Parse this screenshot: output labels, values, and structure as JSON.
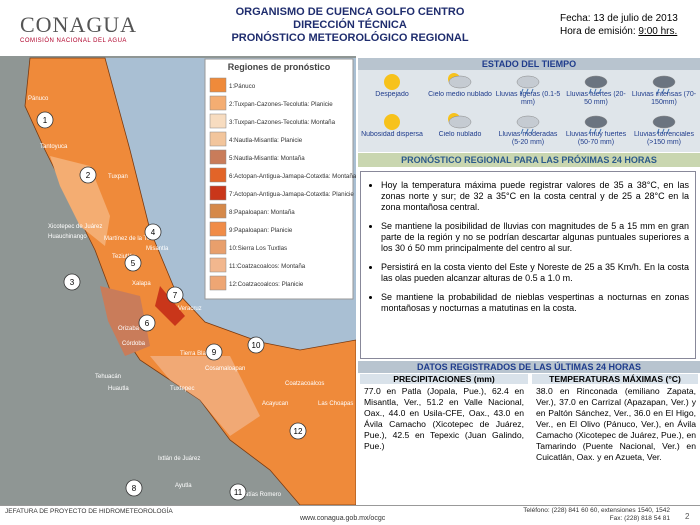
{
  "header": {
    "logo": "CONAGUA",
    "logo_subtitle": "COMISIÓN NACIONAL DEL AGUA",
    "title_lines": [
      "ORGANISMO DE CUENCA GOLFO CENTRO",
      "DIRECCIÓN TÉCNICA",
      "PRONÓSTICO METEOROLÓGICO REGIONAL"
    ],
    "date": "Fecha: 13 de julio de 2013",
    "issue_label": "Hora de emisión:",
    "issue_time": "9:00 hrs."
  },
  "legend": {
    "title": "Regiones de pronóstico",
    "items": [
      {
        "label": "1:Pánuco",
        "color": "#ef8a3a"
      },
      {
        "label": "2:Tuxpan-Cazones-Tecolutla: Planicie",
        "color": "#f4ad72"
      },
      {
        "label": "3:Tuxpan-Cazones-Tecolutla: Montaña",
        "color": "#f7dcc0"
      },
      {
        "label": "4:Nautla-Misantla: Planicie",
        "color": "#f2c59c"
      },
      {
        "label": "5:Nautla-Misantla: Montaña",
        "color": "#c97c5a"
      },
      {
        "label": "6:Actopan-Antigua-Jamapa-Cotaxtla: Montaña",
        "color": "#e26428"
      },
      {
        "label": "7:Actopan-Antigua-Jamapa-Cotaxtla: Planicie",
        "color": "#c9361a"
      },
      {
        "label": "8:Papaloapan: Montaña",
        "color": "#d5894a"
      },
      {
        "label": "9:Papaloapan: Planicie",
        "color": "#f08c48"
      },
      {
        "label": "10:Sierra Los Tuxtlas",
        "color": "#e89f6c"
      },
      {
        "label": "11:Coatzacoalcos: Montaña",
        "color": "#f2b78e"
      },
      {
        "label": "12:Coatzacoalcos: Planicie",
        "color": "#eea674"
      }
    ]
  },
  "map": {
    "regions": [
      1,
      2,
      3,
      4,
      5,
      6,
      7,
      8,
      9,
      10,
      11,
      12
    ],
    "labels": [
      "Pánuco",
      "Tantoyuca",
      "Tuxpan",
      "Xicotepec de Juárez",
      "Huauchinango",
      "Martínez de la Torre",
      "Misantla",
      "Teziutlán",
      "Xalapa",
      "Veracruz",
      "Orizaba",
      "Córdoba",
      "Tierra Blanca",
      "Cosamaloapan",
      "Tuxtepec",
      "Tehuacán",
      "Huautla",
      "Ixtlán de Juárez",
      "Ayutla",
      "Acayucan",
      "Coatzacoalcos",
      "Las Choapas",
      "Matías Romero"
    ]
  },
  "weather": {
    "title": "ESTADO DEL TIEMPO",
    "items": [
      "Despejado",
      "Cielo medio nublado",
      "Lluvias ligeras (0.1-5 mm)",
      "Lluvias fuertes (20-50 mm)",
      "Lluvias intensas (70-150mm)",
      "Nubosidad dispersa",
      "Cielo nublado",
      "Lluvias moderadas (5-20 mm)",
      "Lluvias muy fuertes (50-70 mm)",
      "Lluvias torrenciales (>150 mm)"
    ]
  },
  "forecast": {
    "title": "PRONÓSTICO REGIONAL PARA LAS PRÓXIMAS 24 HORAS",
    "bullets": [
      "Hoy la temperatura máxima puede registrar valores de 35 a 38°C, en las zonas norte y sur; de 32 a 35°C en la costa central y de 25 a 28°C en la zona montañosa central.",
      "Se mantiene la posibilidad de lluvias con magnitudes de 5 a 15 mm en gran parte de la región y no se podrían descartar algunas puntuales superiores a los 30 ó 50 mm principalmente del centro al sur.",
      "Persistirá en la costa viento del Este y Noreste de 25 a 35 Km/h. En la costa las olas pueden alcanzar alturas de 0.5 a 1.0 m.",
      "Se mantiene la probabilidad de nieblas vespertinas a nocturnas en zonas montañosas y nocturnas a matutinas en la costa."
    ]
  },
  "records": {
    "title": "DATOS REGISTRADOS DE LAS ÚLTIMAS 24 HORAS",
    "columns": [
      {
        "heading": "PRECIPITACIONES (mm)",
        "text": "77.0 en Patla (Jopala, Pue.), 62.4 en Misantla, Ver., 51.2 en Valle Nacional, Oax., 44.0 en Usila-CFE, Oax., 43.0 en Ávila Camacho (Xicotepec de Juárez, Pue.), 42.5 en Tepexic (Juan Galindo, Pue.)"
      },
      {
        "heading": "TEMPERATURAS MÁXIMAS (°C)",
        "text": "38.0 en Rinconada (emiliano Zapata, Ver.), 37.0 en Carrizal (Apazapan, Ver.) y en Paltón Sánchez, Ver., 36.0 en El Higo, Ver., en El Olivo (Pánuco, Ver.), en Ávila Camacho (Xicotepec de Juárez, Pue.), en Tamarindo (Puente Nacional, Ver.) en Cuicatlán, Oax. y en Azueta, Ver."
      }
    ]
  },
  "footer": {
    "left": "JEFATURA DE PROYECTO DE HIDROMETEOROLOGÍA",
    "url": "www.conagua.gob.mx/ocgc",
    "phone": "Teléfono: (228) 841 60 60, extensiones 1540, 1542",
    "fax": "Fax: (228) 818 54 81",
    "page": "2"
  }
}
